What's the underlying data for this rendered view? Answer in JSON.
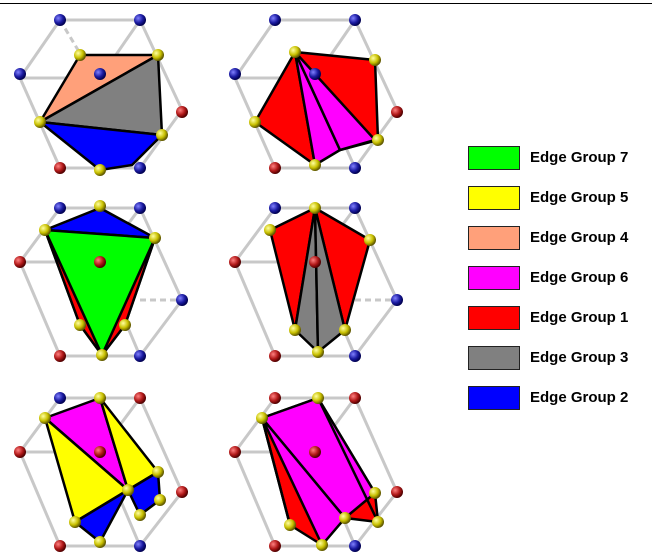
{
  "legend": {
    "items": [
      {
        "label": "Edge Group 7",
        "color": "#00ff00"
      },
      {
        "label": "Edge Group 5",
        "color": "#ffff00"
      },
      {
        "label": "Edge Group 4",
        "color": "#ffa07a"
      },
      {
        "label": "Edge Group 6",
        "color": "#ff00ff"
      },
      {
        "label": "Edge Group 1",
        "color": "#ff0000"
      },
      {
        "label": "Edge Group 3",
        "color": "#808080"
      },
      {
        "label": "Edge Group 2",
        "color": "#0000ff"
      }
    ]
  },
  "colors": {
    "edge_group_7": "#00ff00",
    "edge_group_5": "#ffff00",
    "edge_group_4": "#ffa07a",
    "edge_group_6": "#ff00ff",
    "edge_group_1": "#ff0000",
    "edge_group_3": "#808080",
    "edge_group_2": "#0000ff",
    "vertex_blue": "#1a1aa0",
    "vertex_red": "#b01818",
    "vertex_yellow": "#c8c000",
    "cube_edge": "#c8c8c8"
  }
}
